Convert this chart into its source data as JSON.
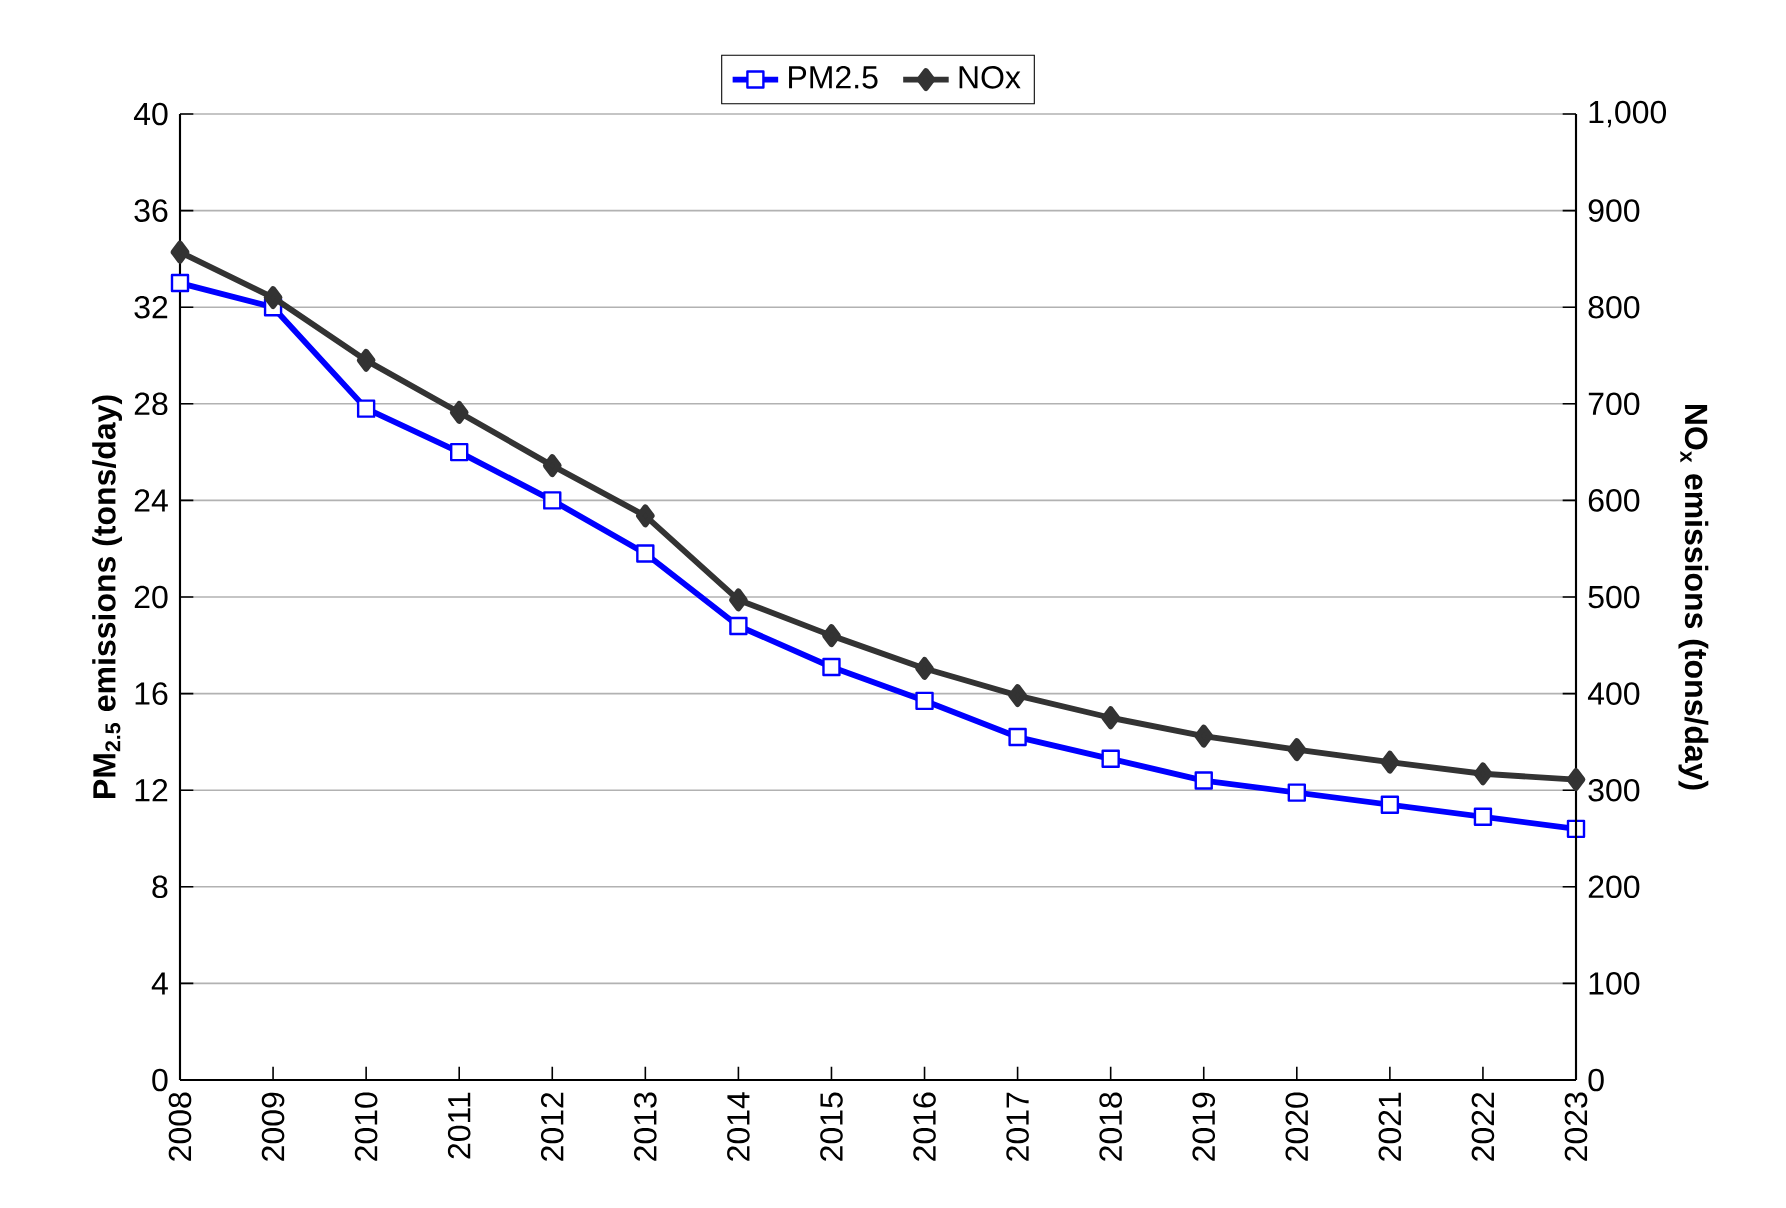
{
  "chart_data": {
    "type": "line",
    "categories": [
      "2008",
      "2009",
      "2010",
      "2011",
      "2012",
      "2013",
      "2014",
      "2015",
      "2016",
      "2017",
      "2018",
      "2019",
      "2020",
      "2021",
      "2022",
      "2023"
    ],
    "ylabel": "PM$_{2.5}$ emissions (tons/day)",
    "y2label": "NO$_{x}$ emissions (tons/day)",
    "ylim": [
      0,
      40
    ],
    "yticks": [
      0,
      4,
      8,
      12,
      16,
      20,
      24,
      28,
      32,
      36,
      40
    ],
    "y2lim": [
      0,
      1000
    ],
    "y2ticks": [
      0,
      100,
      200,
      300,
      400,
      500,
      600,
      700,
      800,
      900,
      {
        "value": 1000,
        "label": "1,000"
      }
    ],
    "grid": "y",
    "legend": "top",
    "line_style": "solid",
    "series": [
      {
        "name": "PM2.5",
        "color": "#0000ff",
        "marker": "square",
        "values": [
          33,
          32,
          27.8,
          26,
          24,
          21.8,
          18.8,
          17.1,
          15.7,
          14.2,
          13.3,
          12.4,
          11.9,
          11.4,
          10.9,
          10.4
        ]
      },
      {
        "name": "NOx",
        "color": "#333333",
        "marker": "diamond",
        "axis": "y2",
        "values": [
          857,
          810,
          745,
          691,
          636,
          584,
          497,
          460,
          426,
          398,
          375,
          356,
          342,
          329,
          317,
          311
        ]
      }
    ]
  }
}
